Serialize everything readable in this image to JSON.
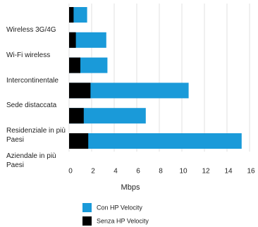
{
  "chart_data": {
    "type": "bar",
    "orientation": "horizontal",
    "categories": [
      "Wireless 3G/4G",
      "Wi-Fi wireless",
      "Intercontinentale",
      "Sede distaccata",
      "Residenziale in più Paesi",
      "Aziendale in più Paesi"
    ],
    "series": [
      {
        "name": "Con HP Velocity",
        "color": "#1a9ad9",
        "values": [
          1.6,
          3.3,
          3.4,
          10.6,
          6.8,
          15.3
        ]
      },
      {
        "name": "Senza HP Velocity",
        "color": "#000000",
        "values": [
          0.4,
          0.6,
          1.0,
          1.9,
          1.3,
          1.7
        ]
      }
    ],
    "x_label": "Mbps",
    "xlim": [
      0,
      16
    ],
    "xticks": [
      0,
      2,
      4,
      6,
      8,
      10,
      12,
      14,
      16
    ],
    "grid": true
  }
}
